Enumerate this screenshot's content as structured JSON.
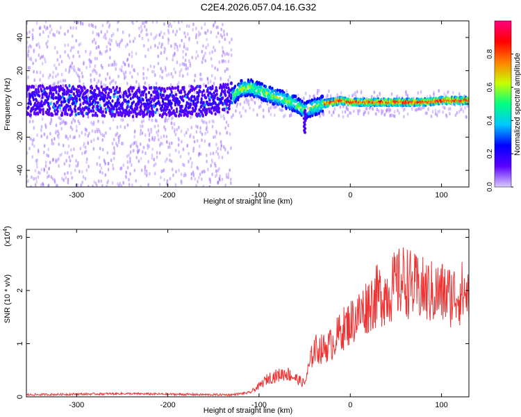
{
  "title": "C2E4.2026.057.04.16.G32",
  "chart_data": [
    {
      "type": "heatmap",
      "xlabel": "Height of straight line (km)",
      "ylabel": "Frequency (Hz)",
      "xlim": [
        -355,
        130
      ],
      "ylim": [
        -50,
        50
      ],
      "xticks": [
        -300,
        -200,
        -100,
        0,
        100
      ],
      "yticks": [
        -40,
        -20,
        0,
        20,
        40
      ],
      "colorbar": {
        "label": "Normalized spectral amplitude",
        "range": [
          0,
          1
        ],
        "ticks": [
          0.0,
          0.2,
          0.4,
          0.6,
          0.8
        ],
        "tick_labels": [
          "0.0",
          "0.2",
          "0.4",
          "0.6",
          "0.8"
        ],
        "colormap": [
          "#d9ccff",
          "#5a00ff",
          "#0000ff",
          "#00c8ff",
          "#00ff80",
          "#c8ff00",
          "#ff8000",
          "#ff0000",
          "#ff0080"
        ]
      },
      "description": "Broad noisy spread of low amplitude (lavender/purple) for heights below about -130 km; a concentrated ridge near 0 Hz that rises to about +10 Hz near -120 km, descends to about -4 Hz near -50 km (with a downward spike to about -18 Hz), then flattens near +1 Hz with high amplitude (red) from about -30 km onward.",
      "ridge": {
        "x": [
          -355,
          -300,
          -250,
          -200,
          -150,
          -130,
          -120,
          -110,
          -100,
          -90,
          -80,
          -70,
          -60,
          -50,
          -40,
          -30,
          -20,
          -10,
          0,
          20,
          40,
          60,
          80,
          100,
          130
        ],
        "y": [
          2,
          2,
          1,
          1,
          2,
          4,
          9,
          10,
          8,
          6,
          4,
          2,
          0,
          -4,
          -2,
          0,
          1,
          2,
          1,
          1,
          1,
          1,
          1,
          2,
          2
        ]
      }
    },
    {
      "type": "line",
      "xlabel": "Height of straight line (km)",
      "ylabel": "SNR (10 * v/v)",
      "y_multiplier": "(x10",
      "y_multiplier_exp": "4",
      "y_multiplier_close": ")",
      "xlim": [
        -355,
        130
      ],
      "ylim": [
        0,
        3.15
      ],
      "xticks": [
        -300,
        -200,
        -100,
        0,
        100
      ],
      "yticks": [
        0,
        1,
        2,
        3
      ],
      "color": "#ee3333",
      "series": [
        {
          "x": [
            -355,
            -300,
            -250,
            -200,
            -150,
            -130,
            -110,
            -100,
            -90,
            -80,
            -70,
            -60,
            -50,
            -40,
            -30,
            -20,
            -10,
            0,
            10,
            20,
            30,
            40,
            50,
            60,
            70,
            80,
            90,
            100,
            110,
            120,
            130
          ],
          "y": [
            0.04,
            0.05,
            0.06,
            0.05,
            0.04,
            0.04,
            0.08,
            0.2,
            0.35,
            0.4,
            0.45,
            0.35,
            0.25,
            0.9,
            0.9,
            1.0,
            1.25,
            1.4,
            1.55,
            1.75,
            1.9,
            1.95,
            2.1,
            2.2,
            2.05,
            2.0,
            1.95,
            1.95,
            1.9,
            1.95,
            1.95
          ]
        }
      ]
    }
  ]
}
